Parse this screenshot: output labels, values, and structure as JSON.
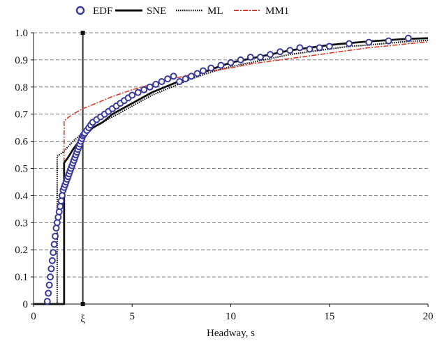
{
  "chart_data": {
    "type": "line",
    "xlabel": "Headway, s",
    "ylabel": "",
    "xlim": [
      0,
      20
    ],
    "ylim": [
      0,
      1
    ],
    "x_ticks": [
      0,
      5,
      10,
      15,
      20
    ],
    "y_ticks": [
      "0",
      "0.1",
      "0.2",
      "0.3",
      "0.4",
      "0.5",
      "0.6",
      "0.7",
      "0.8",
      "0.9",
      "1.0"
    ],
    "grid": "horizontal-dashed",
    "legend_position": "top",
    "marker": {
      "label": "ξ",
      "x": 2.5
    },
    "series": [
      {
        "name": "EDF",
        "style": "markers",
        "color": "#3a3a9a",
        "x": [
          0.7,
          0.75,
          0.8,
          0.85,
          0.9,
          0.95,
          1.0,
          1.05,
          1.1,
          1.15,
          1.2,
          1.25,
          1.3,
          1.35,
          1.4,
          1.45,
          1.5,
          1.55,
          1.6,
          1.65,
          1.7,
          1.75,
          1.8,
          1.85,
          1.9,
          1.95,
          2.0,
          2.05,
          2.1,
          2.15,
          2.2,
          2.25,
          2.3,
          2.35,
          2.4,
          2.45,
          2.5,
          2.55,
          2.6,
          2.7,
          2.8,
          2.9,
          3.0,
          3.2,
          3.4,
          3.6,
          3.8,
          4.0,
          4.2,
          4.4,
          4.6,
          4.8,
          5.0,
          5.3,
          5.6,
          5.9,
          6.2,
          6.5,
          6.8,
          7.1,
          7.4,
          7.7,
          8.0,
          8.3,
          8.6,
          9.0,
          9.5,
          10.0,
          10.5,
          11.0,
          11.5,
          12.0,
          12.5,
          13.0,
          13.5,
          14.0,
          14.5,
          15.0,
          16.0,
          17.0,
          18.0,
          19.0
        ],
        "y": [
          0.01,
          0.04,
          0.07,
          0.1,
          0.13,
          0.16,
          0.19,
          0.22,
          0.25,
          0.28,
          0.3,
          0.32,
          0.34,
          0.36,
          0.38,
          0.4,
          0.42,
          0.43,
          0.44,
          0.45,
          0.46,
          0.47,
          0.48,
          0.49,
          0.5,
          0.51,
          0.52,
          0.53,
          0.54,
          0.55,
          0.56,
          0.57,
          0.58,
          0.59,
          0.6,
          0.61,
          0.62,
          0.625,
          0.63,
          0.64,
          0.65,
          0.66,
          0.67,
          0.68,
          0.69,
          0.7,
          0.71,
          0.72,
          0.73,
          0.74,
          0.75,
          0.76,
          0.77,
          0.78,
          0.79,
          0.8,
          0.81,
          0.82,
          0.83,
          0.84,
          0.82,
          0.83,
          0.84,
          0.85,
          0.86,
          0.87,
          0.88,
          0.89,
          0.9,
          0.91,
          0.91,
          0.92,
          0.93,
          0.935,
          0.945,
          0.94,
          0.945,
          0.95,
          0.96,
          0.965,
          0.97,
          0.98
        ]
      },
      {
        "name": "SNE",
        "style": "solid",
        "color": "#111111",
        "x": [
          0,
          1.55,
          1.55,
          1.75,
          2.0,
          2.3,
          2.6,
          3.0,
          3.5,
          4.0,
          5.0,
          6.0,
          7.0,
          8.0,
          9.0,
          10.0,
          11.0,
          12.0,
          13.0,
          14.0,
          15.0,
          16.0,
          17.0,
          18.0,
          19.0,
          20.0
        ],
        "y": [
          0,
          0,
          0.52,
          0.54,
          0.57,
          0.6,
          0.62,
          0.65,
          0.67,
          0.7,
          0.74,
          0.78,
          0.81,
          0.84,
          0.865,
          0.89,
          0.905,
          0.92,
          0.935,
          0.945,
          0.955,
          0.962,
          0.968,
          0.973,
          0.978,
          0.98
        ]
      },
      {
        "name": "ML",
        "style": "dotted",
        "color": "#111111",
        "x": [
          0,
          1.2,
          1.2,
          1.5,
          2.0,
          2.5,
          3.0,
          3.5,
          4.0,
          5.0,
          6.0,
          7.0,
          8.0,
          9.0,
          10.0,
          11.0,
          12.0,
          13.0,
          14.0,
          15.0,
          16.0,
          17.0,
          18.0,
          19.0,
          20.0
        ],
        "y": [
          0,
          0,
          0.545,
          0.56,
          0.6,
          0.63,
          0.65,
          0.67,
          0.69,
          0.73,
          0.77,
          0.8,
          0.83,
          0.855,
          0.875,
          0.89,
          0.905,
          0.92,
          0.93,
          0.94,
          0.95,
          0.955,
          0.962,
          0.968,
          0.972
        ]
      },
      {
        "name": "MM1",
        "style": "dash-dot",
        "color": "#d63a2a",
        "x": [
          0,
          1.55,
          1.55,
          1.8,
          2.0,
          2.5,
          3.0,
          3.5,
          4.0,
          5.0,
          6.0,
          7.0,
          8.0,
          9.0,
          10.0,
          11.0,
          12.0,
          13.0,
          14.0,
          15.0,
          16.0,
          17.0,
          18.0,
          19.0,
          20.0
        ],
        "y": [
          0,
          0,
          0.675,
          0.69,
          0.7,
          0.72,
          0.735,
          0.75,
          0.765,
          0.79,
          0.81,
          0.83,
          0.845,
          0.86,
          0.87,
          0.885,
          0.895,
          0.905,
          0.915,
          0.925,
          0.935,
          0.945,
          0.952,
          0.96,
          0.966
        ]
      }
    ]
  }
}
